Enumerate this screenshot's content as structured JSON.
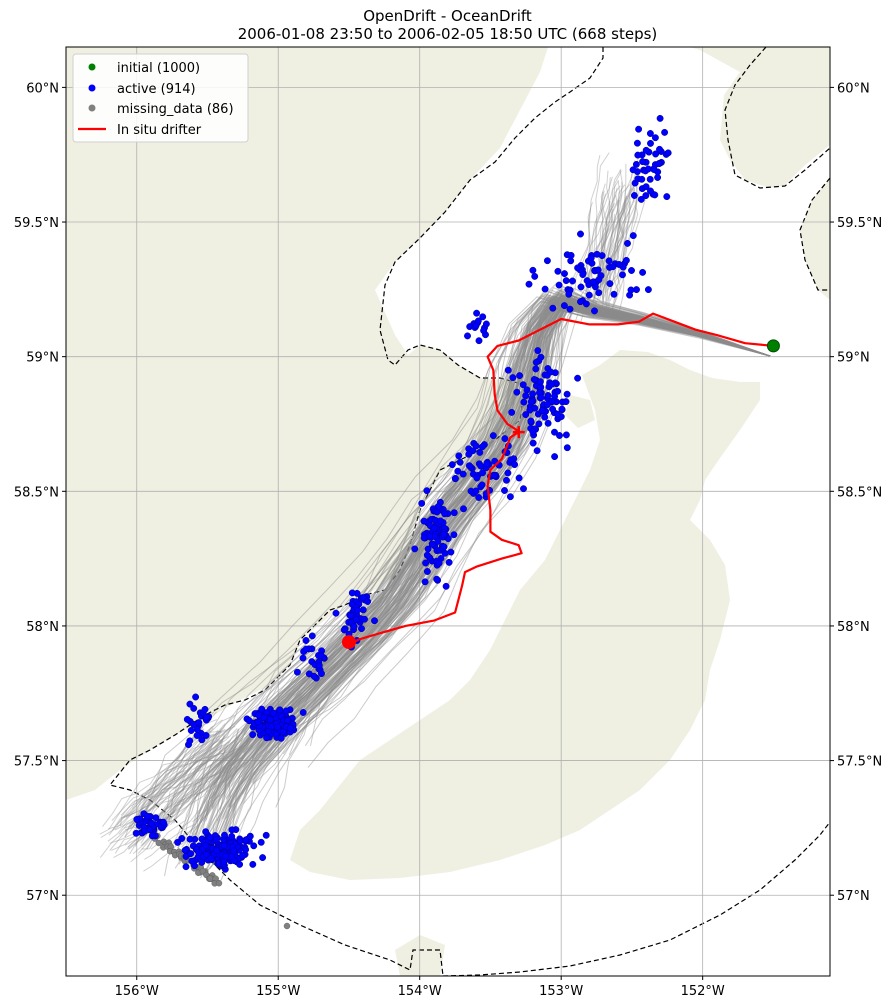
{
  "title": {
    "line1": "OpenDrift - OceanDrift",
    "line2": "2006-01-08 23:50 to 2006-02-05 18:50 UTC (668 steps)"
  },
  "chart_data": {
    "type": "map-trajectories",
    "lon_range": [
      -156.5,
      -151.1
    ],
    "lat_range": [
      56.7,
      60.15
    ],
    "x_ticks": [
      {
        "value": -156,
        "label": "156°W"
      },
      {
        "value": -155,
        "label": "155°W"
      },
      {
        "value": -154,
        "label": "154°W"
      },
      {
        "value": -153,
        "label": "153°W"
      },
      {
        "value": -152,
        "label": "152°W"
      }
    ],
    "y_ticks": [
      {
        "value": 60.0,
        "label": "60°N"
      },
      {
        "value": 59.5,
        "label": "59.5°N"
      },
      {
        "value": 59.0,
        "label": "59°N"
      },
      {
        "value": 58.5,
        "label": "58.5°N"
      },
      {
        "value": 58.0,
        "label": "58°N"
      },
      {
        "value": 57.5,
        "label": "57.5°N"
      },
      {
        "value": 57.0,
        "label": "57°N"
      }
    ],
    "grid": true,
    "legend": {
      "placement": "top-left",
      "entries": [
        {
          "label": "initial (1000)",
          "color": "#008000",
          "marker": "dot"
        },
        {
          "label": "active (914)",
          "color": "#0000ff",
          "marker": "dot"
        },
        {
          "label": "missing_data (86)",
          "color": "#808080",
          "marker": "dot"
        },
        {
          "label": "In situ drifter",
          "color": "#ff0000",
          "marker": "line"
        }
      ]
    },
    "colors": {
      "land": "#efefe2",
      "trajectory": "#8c8c8c",
      "active": "#0000ff",
      "missing": "#808080",
      "initial": "#008000",
      "drifter": "#ff0000"
    },
    "seed_position": {
      "lon": -151.5,
      "lat": 59.04
    },
    "drifter_track": [
      [
        -151.5,
        59.04
      ],
      [
        -151.7,
        59.05
      ],
      [
        -151.9,
        59.08
      ],
      [
        -152.05,
        59.1
      ],
      [
        -152.2,
        59.13
      ],
      [
        -152.35,
        59.16
      ],
      [
        -152.45,
        59.13
      ],
      [
        -152.6,
        59.12
      ],
      [
        -152.8,
        59.12
      ],
      [
        -153.0,
        59.14
      ],
      [
        -153.15,
        59.1
      ],
      [
        -153.3,
        59.06
      ],
      [
        -153.45,
        59.04
      ],
      [
        -153.52,
        59.0
      ],
      [
        -153.48,
        58.95
      ],
      [
        -153.47,
        58.86
      ],
      [
        -153.45,
        58.8
      ],
      [
        -153.38,
        58.75
      ],
      [
        -153.32,
        58.73
      ],
      [
        -153.3,
        58.72
      ],
      [
        -153.36,
        58.7
      ],
      [
        -153.42,
        58.62
      ],
      [
        -153.5,
        58.58
      ],
      [
        -153.52,
        58.52
      ],
      [
        -153.5,
        58.43
      ],
      [
        -153.5,
        58.35
      ],
      [
        -153.42,
        58.32
      ],
      [
        -153.3,
        58.3
      ],
      [
        -153.28,
        58.27
      ],
      [
        -153.35,
        58.26
      ],
      [
        -153.42,
        58.25
      ],
      [
        -153.6,
        58.22
      ],
      [
        -153.68,
        58.2
      ],
      [
        -153.7,
        58.15
      ],
      [
        -153.75,
        58.05
      ],
      [
        -153.9,
        58.02
      ],
      [
        -154.1,
        58.0
      ],
      [
        -154.3,
        57.97
      ],
      [
        -154.43,
        57.95
      ],
      [
        -154.5,
        57.93
      ]
    ],
    "drifter_end": {
      "lon": -154.5,
      "lat": 57.94
    },
    "particle_counts": {
      "initial": 1000,
      "active": 914,
      "missing_data": 86
    }
  }
}
